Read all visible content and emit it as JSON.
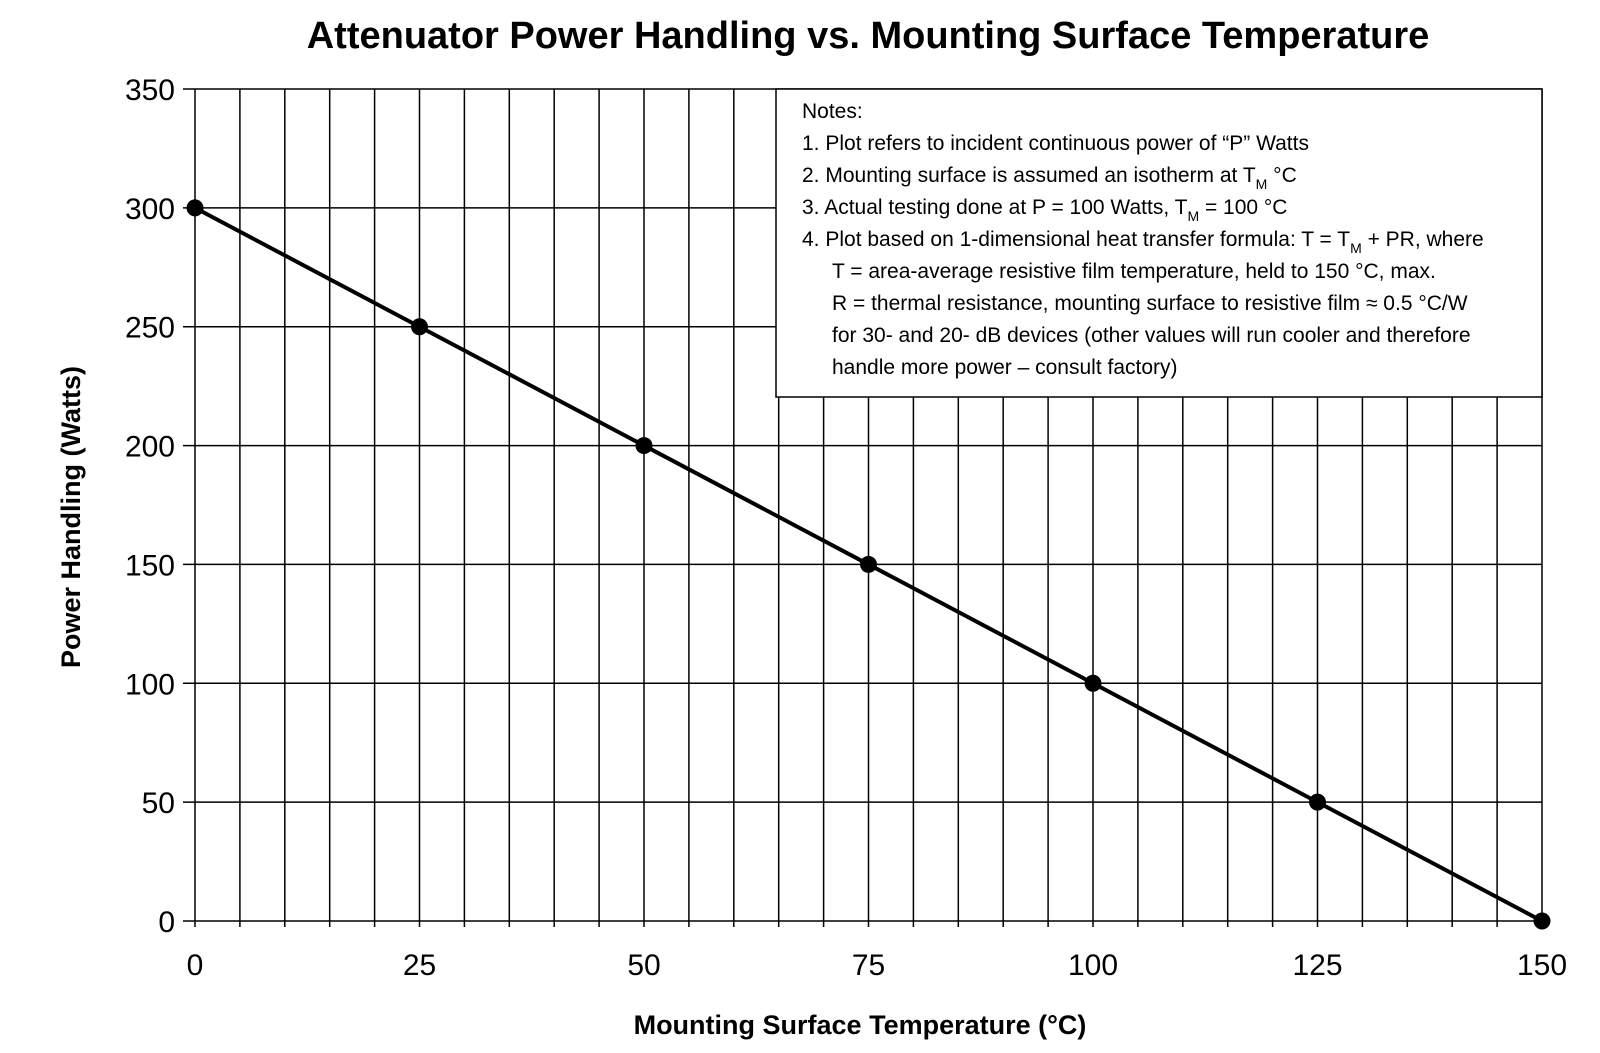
{
  "chart_data": {
    "type": "line",
    "title": "Attenuator Power Handling vs. Mounting Surface Temperature",
    "xlabel": "Mounting Surface Temperature (°C)",
    "ylabel": "Power Handling (Watts)",
    "xlim": [
      0,
      150
    ],
    "ylim": [
      0,
      350
    ],
    "x_ticks": [
      "0",
      "25",
      "50",
      "75",
      "100",
      "125",
      "150"
    ],
    "y_ticks": [
      "0",
      "50",
      "100",
      "150",
      "200",
      "250",
      "300",
      "350"
    ],
    "grid": true,
    "x_grid_step": 5,
    "y_grid_step": 50,
    "series": [
      {
        "x": [
          0,
          25,
          50,
          75,
          100,
          125,
          150
        ],
        "y": [
          300,
          250,
          200,
          150,
          100,
          50,
          0
        ]
      }
    ],
    "colors": {
      "line": "#000000",
      "grid": "#000000",
      "background": "#ffffff"
    }
  },
  "notes": {
    "heading": "Notes:",
    "line1": "1. Plot refers to incident continuous power of “P” Watts",
    "line2_pre": "2. Mounting surface is assumed an isotherm at T",
    "line2_sub": "M",
    "line2_post": " °C",
    "line3_pre": "3. Actual testing done at P = 100 Watts, T",
    "line3_sub": "M",
    "line3_post": " = 100 °C",
    "line4_pre": "4. Plot based on 1-dimensional heat transfer formula: T = T",
    "line4_sub": "M",
    "line4_post": " + PR, where",
    "line5": "T = area-average resistive film temperature, held to 150 °C, max.",
    "line6": "R = thermal resistance, mounting surface to resistive film ≈ 0.5 °C/W",
    "line7": "for 30- and 20- dB devices (other values will run cooler and therefore",
    "line8": "handle more power – consult factory)"
  }
}
